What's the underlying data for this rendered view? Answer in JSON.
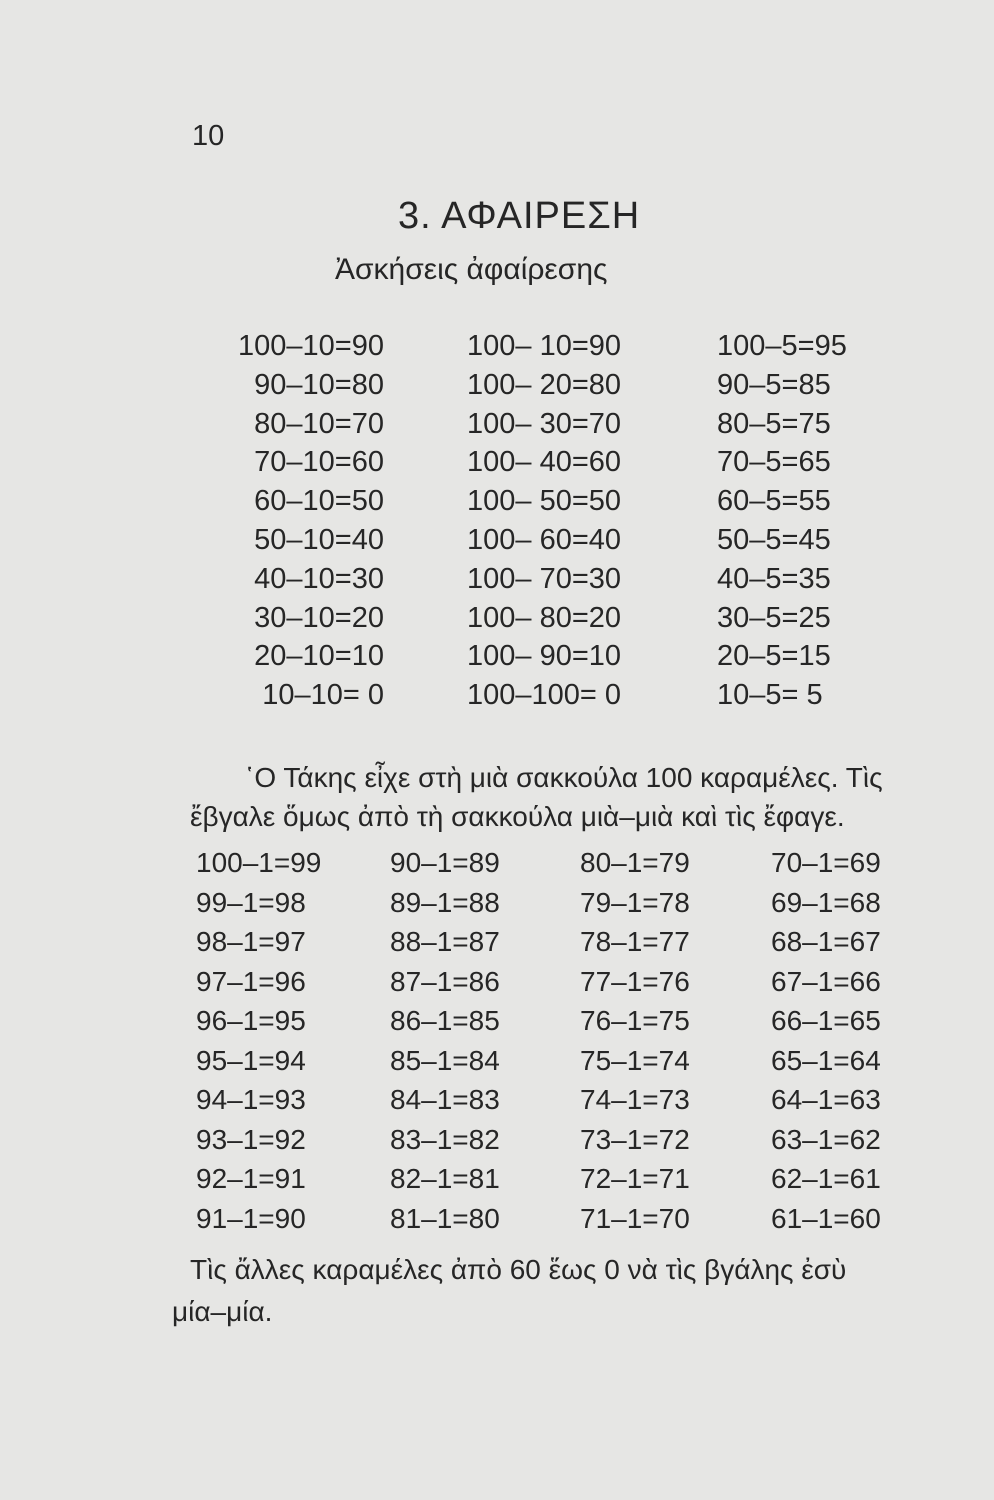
{
  "page_number": "10",
  "title": "3. ΑΦΑΙΡΕΣΗ",
  "subtitle": "Ἀσκήσεις ἀφαίρεσης",
  "table1": [
    [
      "100–10=90",
      "90–10=80",
      "80–10=70",
      "70–10=60",
      "60–10=50",
      "50–10=40",
      "40–10=30",
      "30–10=20",
      "20–10=10",
      "10–10= 0"
    ],
    [
      "100– 10=90",
      "100– 20=80",
      "100– 30=70",
      "100– 40=60",
      "100– 50=50",
      "100– 60=40",
      "100– 70=30",
      "100– 80=20",
      "100– 90=10",
      "100–100= 0"
    ],
    [
      "100–5=95",
      "90–5=85",
      "80–5=75",
      "70–5=65",
      "60–5=55",
      "50–5=45",
      "40–5=35",
      "30–5=25",
      "20–5=15",
      "10–5= 5"
    ]
  ],
  "paragraph1": {
    "line1": "῾Ο Τάκης εἶχε στὴ μιὰ σακκούλα 100 καραμέλες. Τὶς",
    "line2": "ἔβγαλε ὅμως ἀπὸ τὴ σακκούλα μιὰ–μιὰ καὶ  τὶς ἔφαγε."
  },
  "table2": [
    [
      "100–1=99",
      "99–1=98",
      "98–1=97",
      "97–1=96",
      "96–1=95",
      "95–1=94",
      "94–1=93",
      "93–1=92",
      "92–1=91",
      "91–1=90"
    ],
    [
      "90–1=89",
      "89–1=88",
      "88–1=87",
      "87–1=86",
      "86–1=85",
      "85–1=84",
      "84–1=83",
      "83–1=82",
      "82–1=81",
      "81–1=80"
    ],
    [
      "80–1=79",
      "79–1=78",
      "78–1=77",
      "77–1=76",
      "76–1=75",
      "75–1=74",
      "74–1=73",
      "73–1=72",
      "72–1=71",
      "71–1=70"
    ],
    [
      "70–1=69",
      "69–1=68",
      "68–1=67",
      "67–1=66",
      "66–1=65",
      "65–1=64",
      "64–1=63",
      "63–1=62",
      "62–1=61",
      "61–1=60"
    ]
  ],
  "paragraph2": {
    "line1": "Τὶς ἄλλες καραμέλες ἀπὸ 60 ἕως 0 νὰ τὶς βγάλης ἐσὺ",
    "line2": "μία–μία."
  }
}
